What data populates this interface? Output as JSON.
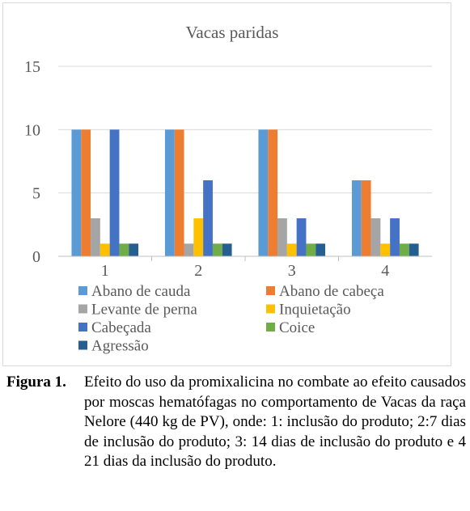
{
  "chart_data": {
    "type": "bar",
    "title": "Vacas paridas",
    "categories": [
      "1",
      "2",
      "3",
      "4"
    ],
    "series": [
      {
        "name": "Abano de cauda",
        "color": "#5b9bd5",
        "values": [
          10,
          10,
          10,
          6
        ]
      },
      {
        "name": "Abano de cabeça",
        "color": "#ed7d31",
        "values": [
          10,
          10,
          10,
          6
        ]
      },
      {
        "name": "Levante de perna",
        "color": "#a5a5a5",
        "values": [
          3,
          1,
          3,
          3
        ]
      },
      {
        "name": "Inquietação",
        "color": "#ffc000",
        "values": [
          1,
          3,
          1,
          1
        ]
      },
      {
        "name": "Cabeçada",
        "color": "#4472c4",
        "values": [
          10,
          6,
          3,
          3
        ]
      },
      {
        "name": "Coice",
        "color": "#70ad47",
        "values": [
          1,
          1,
          1,
          1
        ]
      },
      {
        "name": "Agressão",
        "color": "#255e91",
        "values": [
          1,
          1,
          1,
          1
        ]
      }
    ],
    "ylim": [
      0,
      15
    ],
    "yticks": [
      0,
      5,
      10,
      15
    ],
    "grid": true,
    "legend": "bottom",
    "xlabel": "",
    "ylabel": ""
  },
  "caption": {
    "label": "Figura 1.",
    "text": "Efeito do uso da promixalicina no combate ao efeito causados por moscas hematófagas no comportamento de Vacas da raça Nelore (440 kg de PV), onde: 1: inclusão do produto; 2:7 dias de inclusão do produto; 3: 14 dias de inclusão do produto e 4 21 dias da inclusão do produto."
  }
}
